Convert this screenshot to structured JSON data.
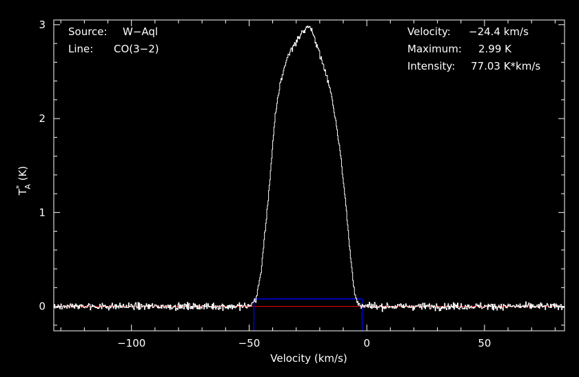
{
  "chart_data": {
    "type": "line",
    "title": "",
    "xlabel": "Velocity (km/s)",
    "ylabel_main": "T",
    "ylabel_sub": "A",
    "ylabel_sup": "*",
    "ylabel_unit": " (K)",
    "xlim": [
      -133,
      84
    ],
    "ylim": [
      -0.26,
      3.05
    ],
    "xticks": [
      -100,
      -50,
      0,
      50
    ],
    "xtick_labels": [
      "−100",
      "−50",
      "0",
      "50"
    ],
    "yticks": [
      0,
      1,
      2,
      3
    ],
    "ytick_labels": [
      "0",
      "1",
      "2",
      "3"
    ],
    "info_left": [
      {
        "key": "Source:",
        "value": "W−Aql"
      },
      {
        "key": "Line:",
        "value": "CO(3−2)"
      }
    ],
    "info_right": [
      {
        "key": "Velocity:",
        "value": "−24.4 km/s"
      },
      {
        "key": "Maximum:",
        "value": "2.99 K"
      },
      {
        "key": "Intensity:",
        "value": "77.03 K*km/s"
      }
    ],
    "series": [
      {
        "color": "#ffffff",
        "x": [
          -133,
          -50,
          -47,
          -45,
          -43,
          -41,
          -39,
          -37,
          -35,
          -33,
          -31,
          -29,
          -27,
          -25,
          -24.4,
          -23,
          -21,
          -19,
          -17,
          -15,
          -13,
          -11,
          -9,
          -7,
          -5,
          -4,
          -3,
          -2,
          0,
          84
        ],
        "y": [
          0,
          0,
          0.08,
          0.35,
          0.85,
          1.4,
          2.0,
          2.35,
          2.55,
          2.7,
          2.78,
          2.86,
          2.93,
          2.98,
          2.99,
          2.9,
          2.78,
          2.6,
          2.45,
          2.25,
          1.95,
          1.6,
          1.1,
          0.55,
          0.12,
          0.03,
          0,
          0,
          0,
          0
        ],
        "noise_sigma": 0.025
      }
    ],
    "baseline": {
      "color": "#ff0000",
      "y": 0
    },
    "integration_window": {
      "color": "#0000ff",
      "x_min": -48,
      "x_max": -2,
      "y_top": 0.08,
      "y_bottom": -0.26
    }
  }
}
